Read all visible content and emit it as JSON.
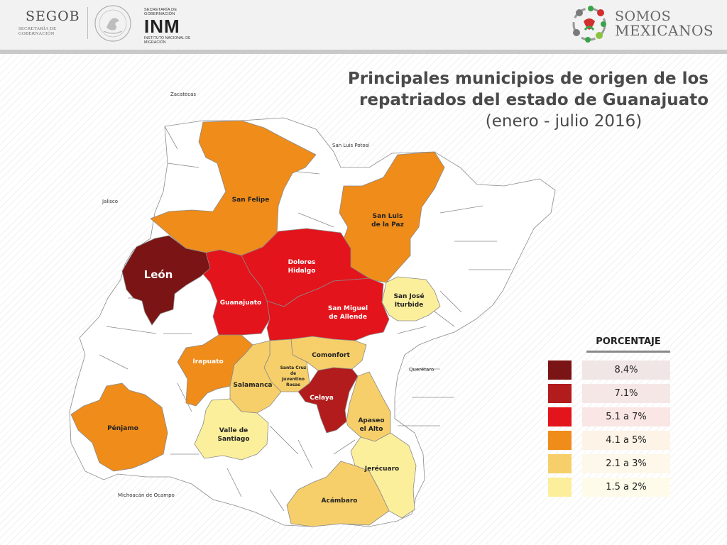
{
  "header": {
    "segob": {
      "word": "SEGOB",
      "subtitle": "SECRETARÍA DE GOBERNACIÓN"
    },
    "inm": {
      "top": "SECRETARÍA DE GOBERNACIÓN",
      "logo": "INM",
      "bottom": "INSTITUTO NACIONAL DE MIGRACIÓN"
    },
    "somos": {
      "line1": "SOMOS",
      "line2": "MEXICANOS"
    }
  },
  "title": {
    "line1": "Principales municipios de origen de los",
    "line2": "repatriados del estado de Guanajuato",
    "line3": "(enero - julio 2016)"
  },
  "neighbors": {
    "zacatecas": "Zacatecas",
    "san_luis_potosi": "San Luis Potosí",
    "jalisco": "Jalisco",
    "queretaro": "Querétaro",
    "michoacan": "Michoacán de Ocampo"
  },
  "colors": {
    "class1": "#7b1414",
    "class2": "#b21c1c",
    "class3": "#e3141b",
    "class4": "#ef8c1a",
    "class5": "#f7cf6a",
    "class6": "#fcef9c",
    "none": "#ffffff",
    "border": "#8a8a8a"
  },
  "municipios": {
    "san_felipe": {
      "label": "San Felipe",
      "class": "4.1 a 5%"
    },
    "san_luis_de_la_paz": {
      "label1": "San Luis",
      "label2": "de la Paz",
      "class": "4.1 a 5%"
    },
    "dolores_hidalgo": {
      "label1": "Dolores",
      "label2": "Hidalgo",
      "class": "5.1 a 7%"
    },
    "leon": {
      "label": "León",
      "class": "8.4%"
    },
    "guanajuato": {
      "label": "Guanajuato",
      "class": "5.1 a 7%"
    },
    "san_miguel_de_allende": {
      "label1": "San Miguel",
      "label2": "de Allende",
      "class": "5.1 a 7%"
    },
    "san_jose_iturbide": {
      "label1": "San José",
      "label2": "Iturbide",
      "class": "1.5 a 2%"
    },
    "irapuato": {
      "label": "Irapuato",
      "class": "4.1 a 5%"
    },
    "comonfort": {
      "label": "Comonfort",
      "class": "2.1 a 3%"
    },
    "santa_cruz": {
      "label1": "Santa Cruz",
      "label2": "de",
      "label3": "Juventino",
      "label4": "Rosas",
      "class": "2.1 a 3%"
    },
    "salamanca": {
      "label": "Salamanca",
      "class": "2.1 a 3%"
    },
    "celaya": {
      "label": "Celaya",
      "class": "7.1%"
    },
    "penjamo": {
      "label": "Pénjamo",
      "class": "4.1 a 5%"
    },
    "valle_de_santiago": {
      "label1": "Valle de",
      "label2": "Santiago",
      "class": "1.5 a 2%"
    },
    "apaseo_el_alto": {
      "label1": "Apaseo",
      "label2": "el Alto",
      "class": "2.1 a 3%"
    },
    "jerecuaro": {
      "label": "Jerécuaro",
      "class": "1.5 a 2%"
    },
    "acambaro": {
      "label": "Acámbaro",
      "class": "2.1 a 3%"
    }
  },
  "legend": {
    "title": "PORCENTAJE",
    "items": [
      {
        "label": "8.4%",
        "color": "#7b1414",
        "bg": "#f1e6e6"
      },
      {
        "label": "7.1%",
        "color": "#b21c1c",
        "bg": "#f6e7e7"
      },
      {
        "label": "5.1 a 7%",
        "color": "#e3141b",
        "bg": "#fbe6e6"
      },
      {
        "label": "4.1 a 5%",
        "color": "#ef8c1a",
        "bg": "#fdf3e6"
      },
      {
        "label": "2.1 a 3%",
        "color": "#f7cf6a",
        "bg": "#fdf8ea"
      },
      {
        "label": "1.5 a 2%",
        "color": "#fcef9c",
        "bg": "#fefbea"
      }
    ]
  }
}
